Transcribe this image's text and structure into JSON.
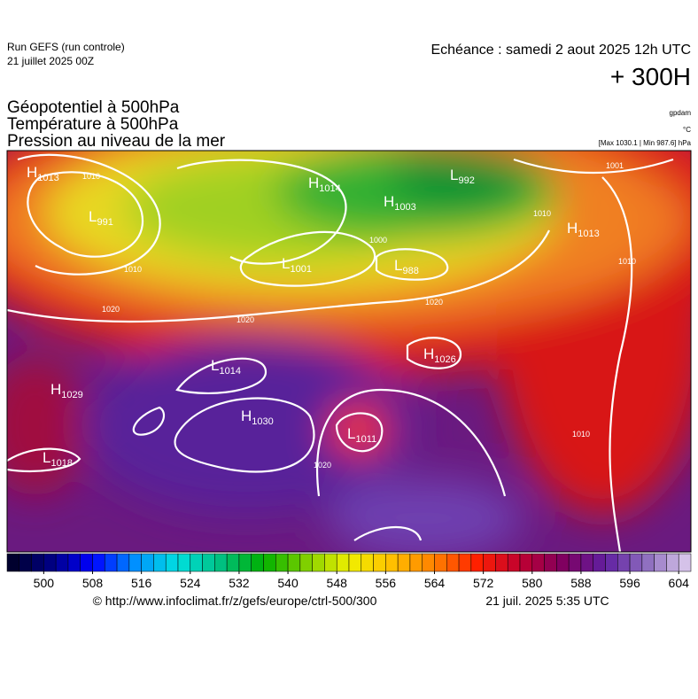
{
  "header": {
    "run": "Run GEFS (run controle)",
    "run_date": "21 juillet 2025 00Z",
    "valid": "Echéance : samedi 2 aout 2025 12h UTC",
    "lead": "+ 300H",
    "fields": [
      "Géopotentiel à 500hPa",
      "Température à 500hPa",
      "Pression au niveau de la mer"
    ],
    "units": [
      "gpdam",
      "°C"
    ],
    "pressure_range": "[Max 1030.1 | Min 987.6] hPa"
  },
  "map": {
    "centers": [
      {
        "letter": "H",
        "pressure": "1013"
      },
      {
        "letter": "L",
        "pressure": "991"
      },
      {
        "letter": "H",
        "pressure": "1014"
      },
      {
        "letter": "H",
        "pressure": "1003"
      },
      {
        "letter": "L",
        "pressure": "992"
      },
      {
        "letter": "L",
        "pressure": "1001"
      },
      {
        "letter": "L",
        "pressure": "988"
      },
      {
        "letter": "H",
        "pressure": "1013"
      },
      {
        "letter": "L",
        "pressure": "1014"
      },
      {
        "letter": "H",
        "pressure": "1026"
      },
      {
        "letter": "H",
        "pressure": "1029"
      },
      {
        "letter": "H",
        "pressure": "1030"
      },
      {
        "letter": "L",
        "pressure": "1011"
      },
      {
        "letter": "L",
        "pressure": "1018"
      }
    ],
    "isobar_labels": [
      "1010",
      "1010",
      "1000",
      "1020",
      "1020",
      "1020",
      "1010",
      "1010",
      "1010",
      "1020",
      "1001"
    ]
  },
  "colorbar": {
    "lim": [
      494,
      606
    ],
    "ticks": [
      500,
      508,
      516,
      524,
      532,
      540,
      548,
      556,
      564,
      572,
      580,
      588,
      596,
      604
    ],
    "colors": [
      "#000020",
      "#000080",
      "#0000ff",
      "#0090ff",
      "#00e0e0",
      "#00c080",
      "#00b000",
      "#80d000",
      "#f0f000",
      "#ffc000",
      "#ff8000",
      "#ff2000",
      "#c00030",
      "#800060",
      "#6020a0",
      "#9070c0",
      "#e0d0f0"
    ]
  },
  "footer": {
    "source": "© http://www.infoclimat.fr/z/gefs/europe/ctrl-500/300",
    "generated": "21 juil. 2025  5:35 UTC"
  }
}
